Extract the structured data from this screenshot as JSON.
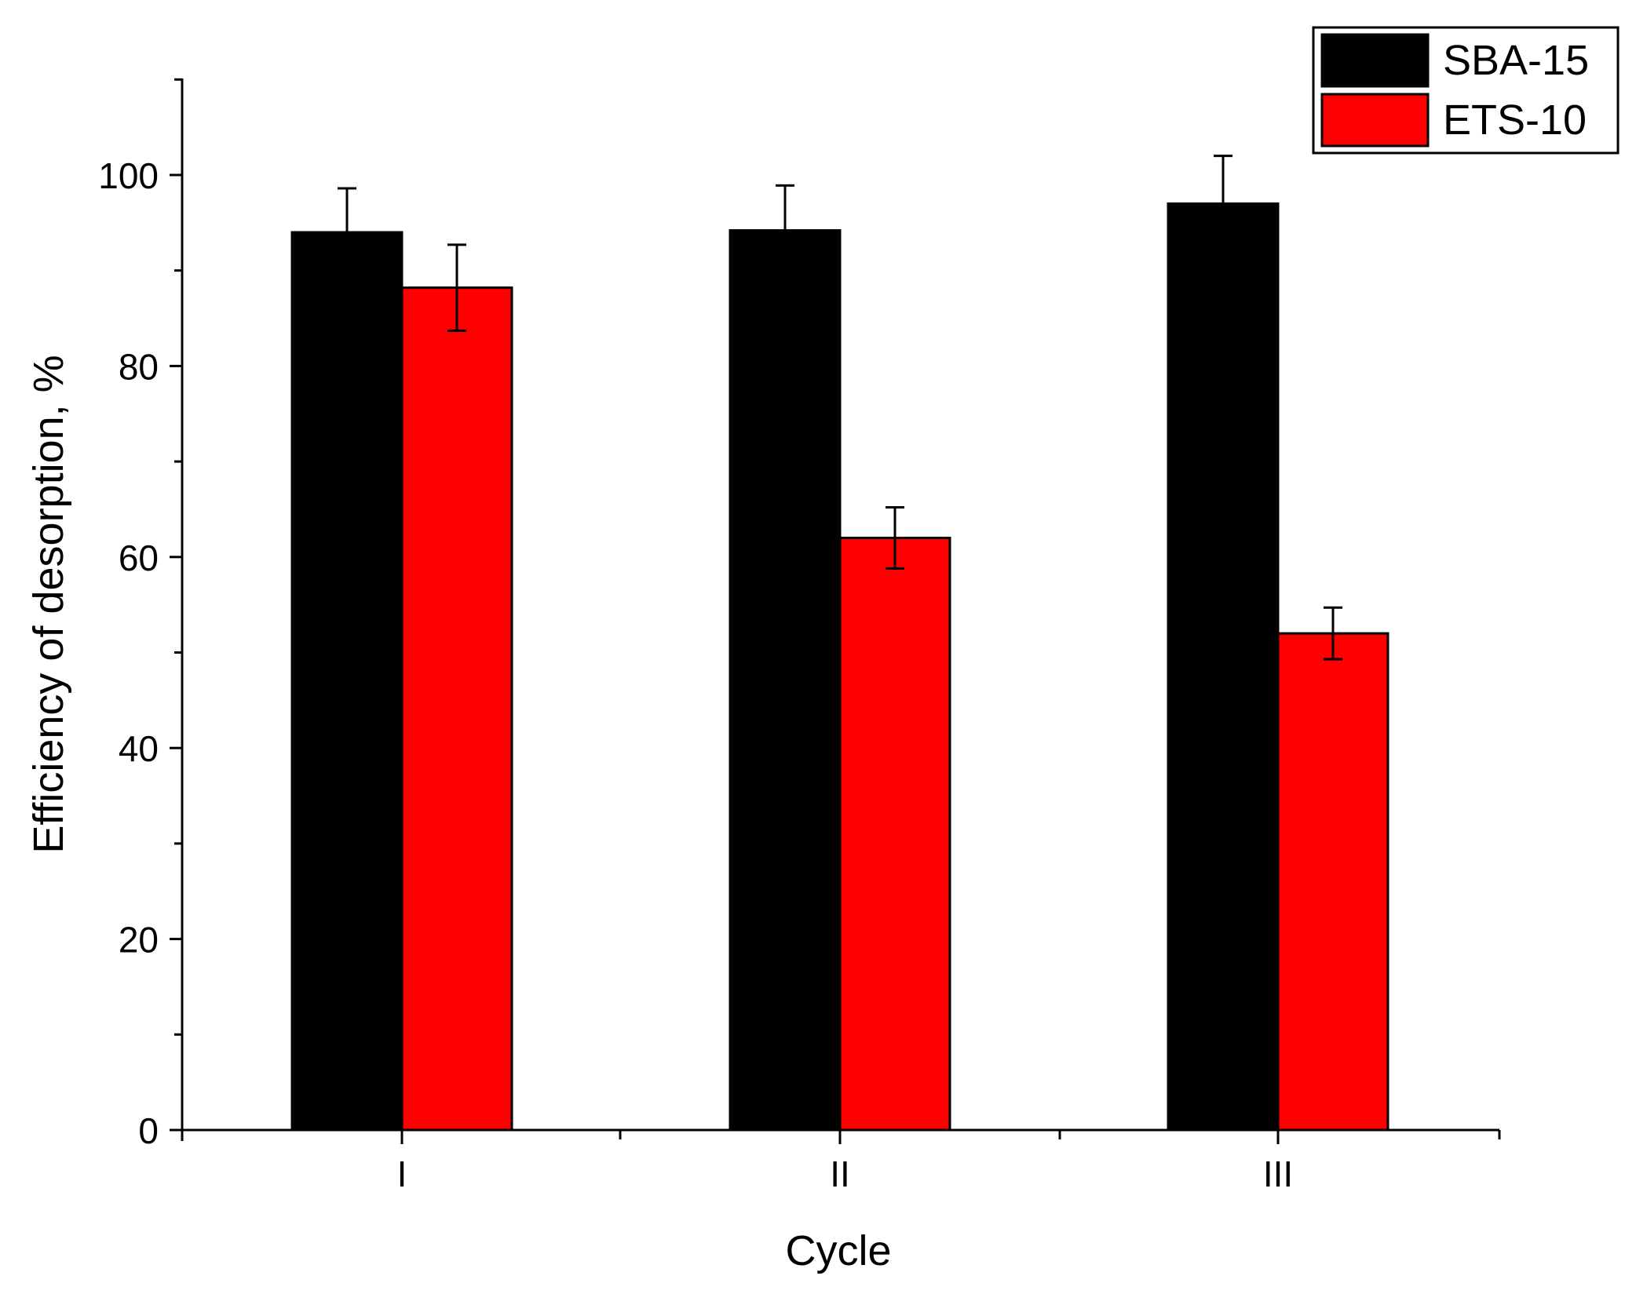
{
  "chart_data": {
    "type": "bar",
    "title": "",
    "xlabel": "Cycle",
    "ylabel": "Efficiency of desorption, %",
    "categories": [
      "I",
      "II",
      "III"
    ],
    "ylim": [
      0,
      110
    ],
    "yticks": [
      0,
      20,
      40,
      60,
      80,
      100
    ],
    "series": [
      {
        "name": "SBA-15",
        "color": "#000000",
        "values": [
          94,
          94.2,
          97
        ],
        "errors": [
          4.6,
          4.7,
          5
        ]
      },
      {
        "name": "ETS-10",
        "color": "#ff0000",
        "values": [
          88.2,
          62,
          52
        ],
        "errors": [
          4.5,
          3.2,
          2.7
        ]
      }
    ],
    "legend": {
      "position": "top-right"
    },
    "grid": false
  }
}
